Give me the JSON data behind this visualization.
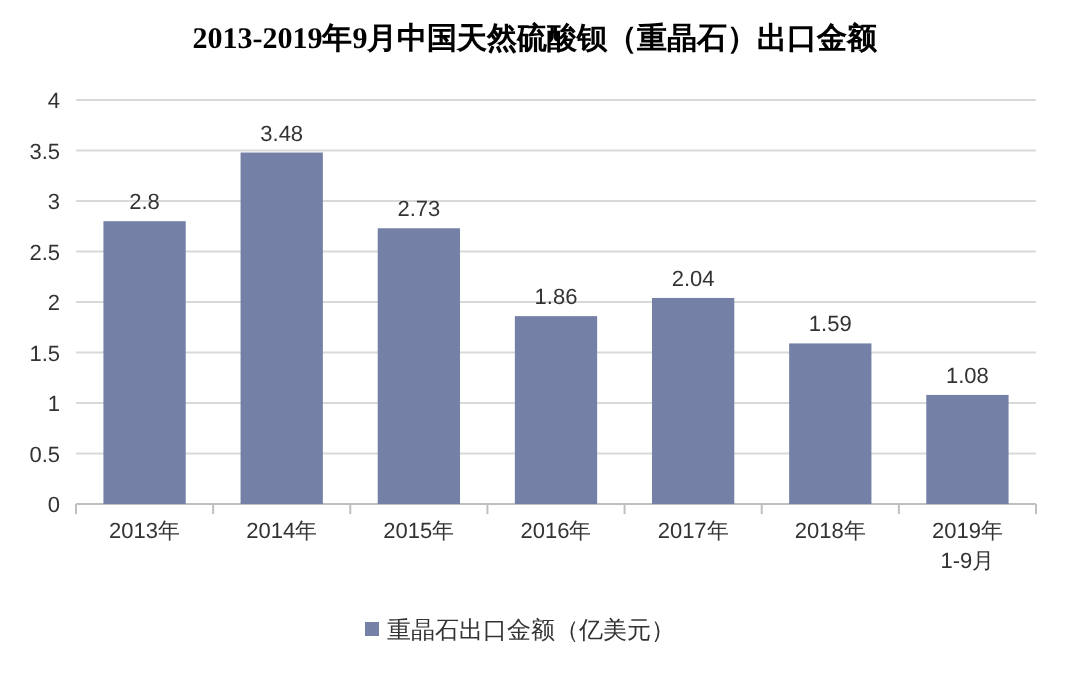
{
  "chart_data": {
    "type": "bar",
    "title": "2013-2019年9月中国天然硫酸钡（重晶石）出口金额",
    "categories": [
      "2013年",
      "2014年",
      "2015年",
      "2016年",
      "2017年",
      "2018年",
      "2019年\n1-9月"
    ],
    "series": [
      {
        "name": "重晶石出口金额（亿美元）",
        "color": "#7480a6",
        "values": [
          2.8,
          3.48,
          2.73,
          1.86,
          2.04,
          1.59,
          1.08
        ]
      }
    ],
    "ylim": [
      0,
      4
    ],
    "yticks": [
      0,
      0.5,
      1,
      1.5,
      2,
      2.5,
      3,
      3.5,
      4
    ],
    "grid": "y",
    "legend": "bottom",
    "data_labels": true
  }
}
